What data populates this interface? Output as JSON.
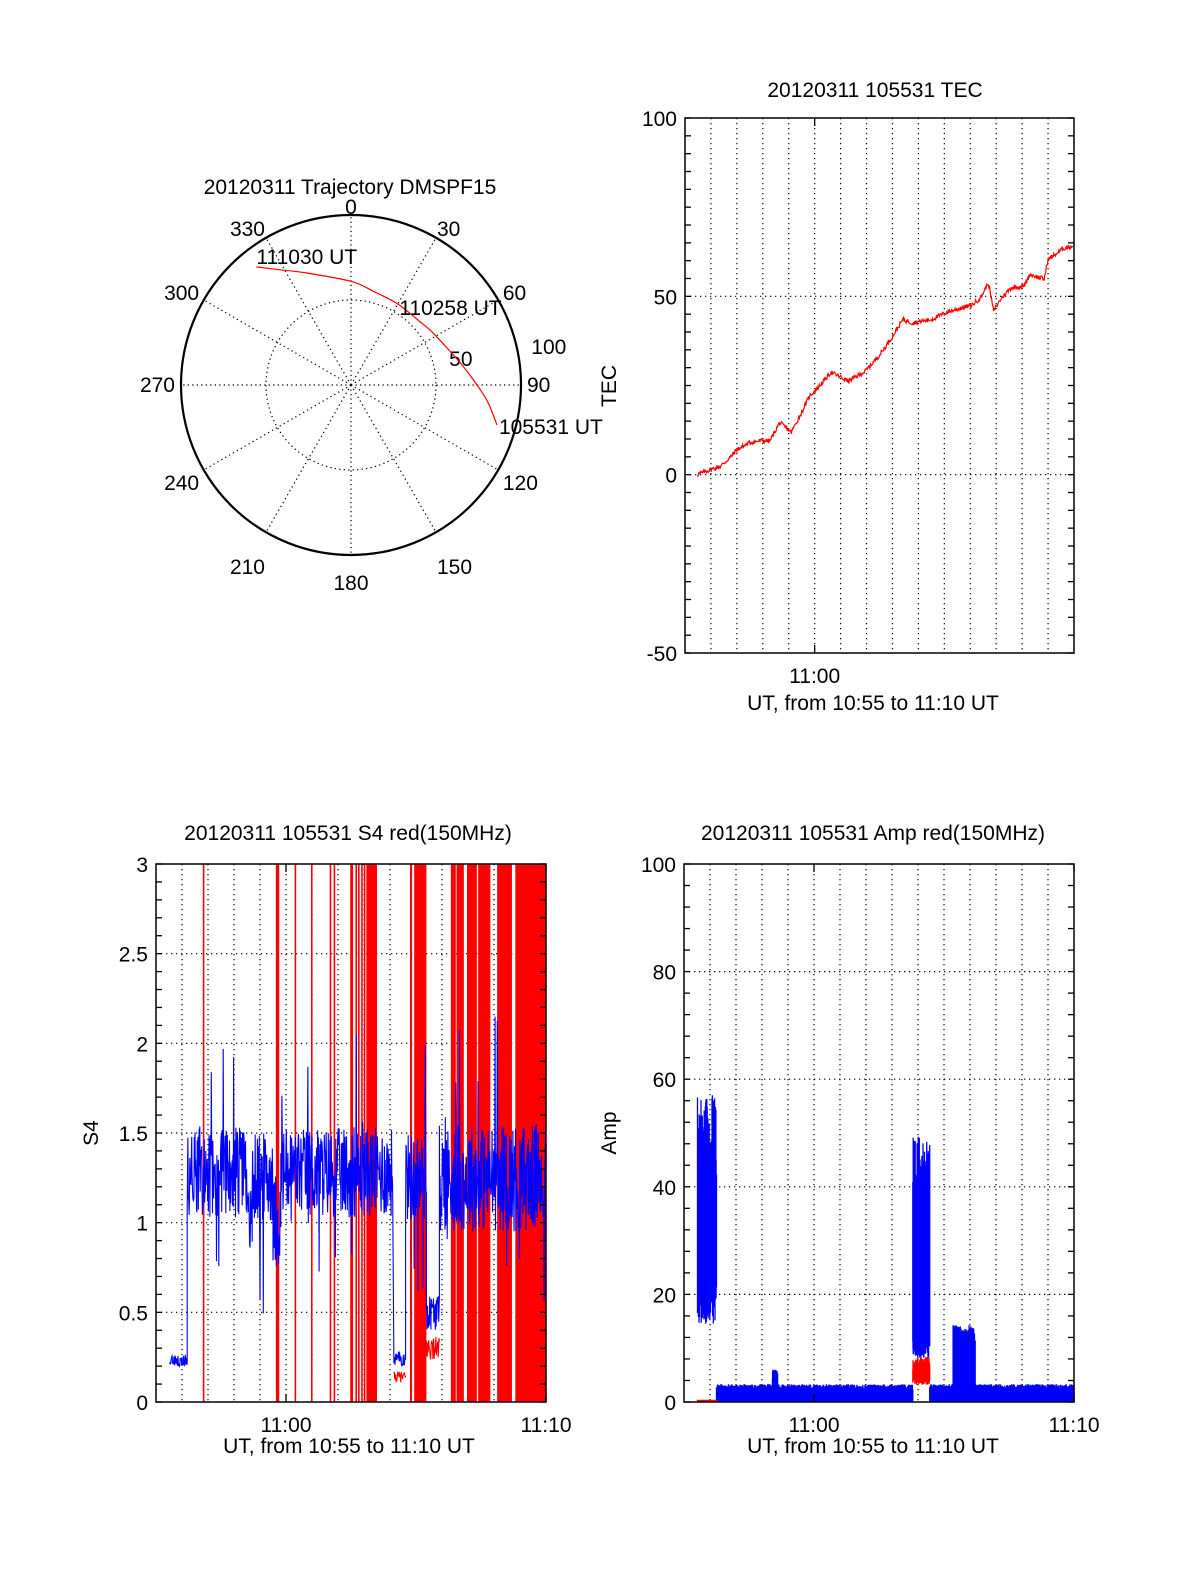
{
  "chart_data": [
    {
      "id": "trajectory",
      "type": "polar-line",
      "title": "20120311 Trajectory DMSPF15",
      "angle_labels": [
        "0",
        "30",
        "60",
        "90",
        "120",
        "150",
        "180",
        "210",
        "240",
        "270",
        "300",
        "330"
      ],
      "angles_deg": [
        0,
        30,
        60,
        90,
        120,
        150,
        180,
        210,
        240,
        270,
        300,
        330
      ],
      "radial_labels": [
        "50",
        "100"
      ],
      "radial_values": [
        50,
        100
      ],
      "rlim": [
        0,
        100
      ],
      "series_color": "#ff0000",
      "points": [
        {
          "az": 105.3,
          "r": 89
        },
        {
          "az": 96,
          "r": 80
        },
        {
          "az": 82.2,
          "r": 68
        },
        {
          "az": 70,
          "r": 61
        },
        {
          "az": 57,
          "r": 57
        },
        {
          "az": 46.9,
          "r": 55
        },
        {
          "az": 30,
          "r": 55
        },
        {
          "az": 12.9,
          "r": 56.8
        },
        {
          "az": 0,
          "r": 61
        },
        {
          "az": 338.2,
          "r": 71
        },
        {
          "az": 328,
          "r": 80
        },
        {
          "az": 321.3,
          "r": 89
        }
      ],
      "annotations": [
        {
          "text": "105531 UT",
          "az": 105.3,
          "r": 89
        },
        {
          "text": "110258 UT",
          "az": 46.9,
          "r": 55
        },
        {
          "text": "111030 UT",
          "az": 321.3,
          "r": 89
        }
      ]
    },
    {
      "id": "tec",
      "type": "line",
      "title": "20120311 105531 TEC",
      "ylabel": "TEC",
      "xlabel": "UT, from 10:55 to 11:10 UT",
      "xlim_minutes": [
        0,
        15
      ],
      "ylim": [
        -50,
        100
      ],
      "yticks": [
        -50,
        0,
        50,
        100
      ],
      "ytick_labels": [
        "-50",
        "0",
        "50",
        "100"
      ],
      "xticks_minutes": [
        5
      ],
      "xtick_labels": [
        "11:00"
      ],
      "grid": true,
      "series_color": "#ff0000",
      "x_minutes": [
        0.46,
        0.9,
        1.36,
        1.7,
        2.0,
        2.5,
        3.0,
        3.27,
        3.65,
        4.1,
        4.5,
        4.8,
        5.2,
        5.63,
        6.3,
        6.95,
        7.5,
        7.97,
        8.4,
        8.75,
        9.5,
        10.15,
        11.05,
        11.4,
        11.7,
        11.9,
        12.2,
        12.57,
        13.08,
        13.3,
        13.85,
        14.0,
        14.2,
        14.6,
        14.95
      ],
      "y": [
        0,
        1.2,
        2.3,
        4.5,
        7,
        9,
        9.6,
        9.4,
        14.6,
        11.9,
        17.5,
        22,
        25,
        28.7,
        26.2,
        29,
        33.5,
        38.4,
        43.5,
        42.6,
        43.5,
        45.7,
        47.5,
        49.6,
        53.8,
        45.9,
        49.5,
        52.4,
        52.9,
        56.2,
        54.8,
        60.4,
        61.3,
        63.5,
        64.1
      ]
    },
    {
      "id": "s4",
      "type": "line",
      "title": "20120311 105531 S4 red(150MHz)",
      "ylabel": "S4",
      "xlabel": "UT, from 10:55 to 11:10 UT",
      "xlim_minutes": [
        0,
        15
      ],
      "ylim": [
        0,
        3
      ],
      "yticks": [
        0,
        0.5,
        1,
        1.5,
        2,
        2.5,
        3
      ],
      "ytick_labels": [
        "0",
        "0.5",
        "1",
        "1.5",
        "2",
        "2.5",
        "3"
      ],
      "xticks_minutes": [
        5,
        15
      ],
      "xtick_labels": [
        "11:00",
        "11:10"
      ],
      "grid": true,
      "series": [
        {
          "name": "blue",
          "color": "#0000ff",
          "segments": [
            {
              "t0": 0.52,
              "t1": 1.2,
              "mean": 0.23,
              "spread": 0.03
            },
            {
              "t0": 1.2,
              "t1": 3.5,
              "mean": 1.28,
              "spread": 0.25
            },
            {
              "t0": 3.5,
              "t1": 3.7,
              "mean": 1.0,
              "spread": 0.2
            },
            {
              "t0": 3.7,
              "t1": 4.5,
              "mean": 1.25,
              "spread": 0.25
            },
            {
              "t0": 4.5,
              "t1": 4.8,
              "mean": 1.0,
              "spread": 0.25
            },
            {
              "t0": 4.8,
              "t1": 9.1,
              "mean": 1.28,
              "spread": 0.25
            },
            {
              "t0": 9.15,
              "t1": 9.6,
              "mean": 0.24,
              "spread": 0.04
            },
            {
              "t0": 9.6,
              "t1": 10.4,
              "mean": 1.25,
              "spread": 0.25
            },
            {
              "t0": 10.4,
              "t1": 10.9,
              "mean": 0.5,
              "spread": 0.1
            },
            {
              "t0": 10.9,
              "t1": 15.0,
              "mean": 1.25,
              "spread": 0.3
            }
          ]
        },
        {
          "name": "red",
          "color": "#ff0000",
          "full_range_bars_minutes": [
            [
              1.8,
              1.84
            ],
            [
              4.61,
              4.74
            ],
            [
              5.33,
              5.36
            ],
            [
              5.96,
              5.99
            ],
            [
              6.68,
              6.71
            ],
            [
              6.83,
              6.86
            ],
            [
              7.47,
              7.58
            ],
            [
              7.67,
              7.7
            ],
            [
              7.77,
              7.8
            ],
            [
              7.89,
              7.92
            ],
            [
              7.99,
              8.02
            ],
            [
              8.09,
              8.5
            ],
            [
              9.77,
              9.85
            ],
            [
              9.93,
              10.4
            ],
            [
              11.34,
              11.53
            ],
            [
              11.56,
              11.84
            ],
            [
              11.96,
              12.34
            ],
            [
              12.39,
              12.86
            ],
            [
              13.12,
              13.69
            ],
            [
              13.82,
              14.98
            ]
          ],
          "segments": [
            {
              "t0": 9.15,
              "t1": 9.6,
              "mean": 0.14,
              "spread": 0.03
            },
            {
              "t0": 10.4,
              "t1": 10.9,
              "mean": 0.3,
              "spread": 0.07
            }
          ]
        }
      ]
    },
    {
      "id": "amp",
      "type": "line",
      "title": "20120311 105531 Amp red(150MHz)",
      "ylabel": "Amp",
      "xlabel": "UT, from 10:55 to 11:10 UT",
      "xlim_minutes": [
        0,
        15
      ],
      "ylim": [
        0,
        100
      ],
      "yticks": [
        0,
        20,
        40,
        60,
        80,
        100
      ],
      "ytick_labels": [
        "0",
        "20",
        "40",
        "60",
        "80",
        "100"
      ],
      "xticks_minutes": [
        5,
        15
      ],
      "xtick_labels": [
        "11:00",
        "11:10"
      ],
      "grid": true,
      "series": [
        {
          "name": "blue",
          "color": "#0000ff",
          "segments": [
            {
              "t0": 0.52,
              "t1": 1.25,
              "low": 18,
              "high": 52
            },
            {
              "t0": 1.25,
              "t1": 8.8,
              "low": 0,
              "high": 3
            },
            {
              "t0": 3.4,
              "t1": 3.6,
              "low": 0,
              "high": 5.5
            },
            {
              "t0": 8.8,
              "t1": 9.45,
              "low": 10,
              "high": 45
            },
            {
              "t0": 9.45,
              "t1": 10.35,
              "low": 0,
              "high": 3
            },
            {
              "t0": 10.35,
              "t1": 11.2,
              "low": 0,
              "high": 13
            },
            {
              "t0": 11.2,
              "t1": 15.0,
              "low": 0,
              "high": 3
            }
          ]
        },
        {
          "name": "red",
          "color": "#ff0000",
          "segments": [
            {
              "t0": 0.52,
              "t1": 1.25,
              "low": 0,
              "high": 0.3
            },
            {
              "t0": 8.8,
              "t1": 9.45,
              "low": 4,
              "high": 8
            }
          ]
        }
      ]
    }
  ]
}
